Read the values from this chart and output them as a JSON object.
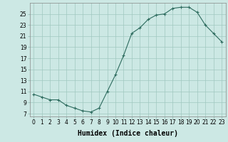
{
  "xlabel": "Humidex (Indice chaleur)",
  "x": [
    0,
    1,
    2,
    3,
    4,
    5,
    6,
    7,
    8,
    9,
    10,
    11,
    12,
    13,
    14,
    15,
    16,
    17,
    18,
    19,
    20,
    21,
    22,
    23
  ],
  "y": [
    10.5,
    10.0,
    9.5,
    9.5,
    8.5,
    8.0,
    7.5,
    7.3,
    8.0,
    11.0,
    14.0,
    17.5,
    21.5,
    22.5,
    24.0,
    24.8,
    25.0,
    26.0,
    26.2,
    26.2,
    25.3,
    23.0,
    21.5,
    20.0
  ],
  "line_color": "#2d6b5e",
  "marker": "+",
  "bg_color": "#cce8e4",
  "grid_color": "#a0c8c0",
  "yticks": [
    7,
    9,
    11,
    13,
    15,
    17,
    19,
    21,
    23,
    25
  ],
  "ylim": [
    6.5,
    27
  ],
  "xlim": [
    -0.5,
    23.5
  ],
  "tick_fontsize": 5.5,
  "xlabel_fontsize": 7
}
